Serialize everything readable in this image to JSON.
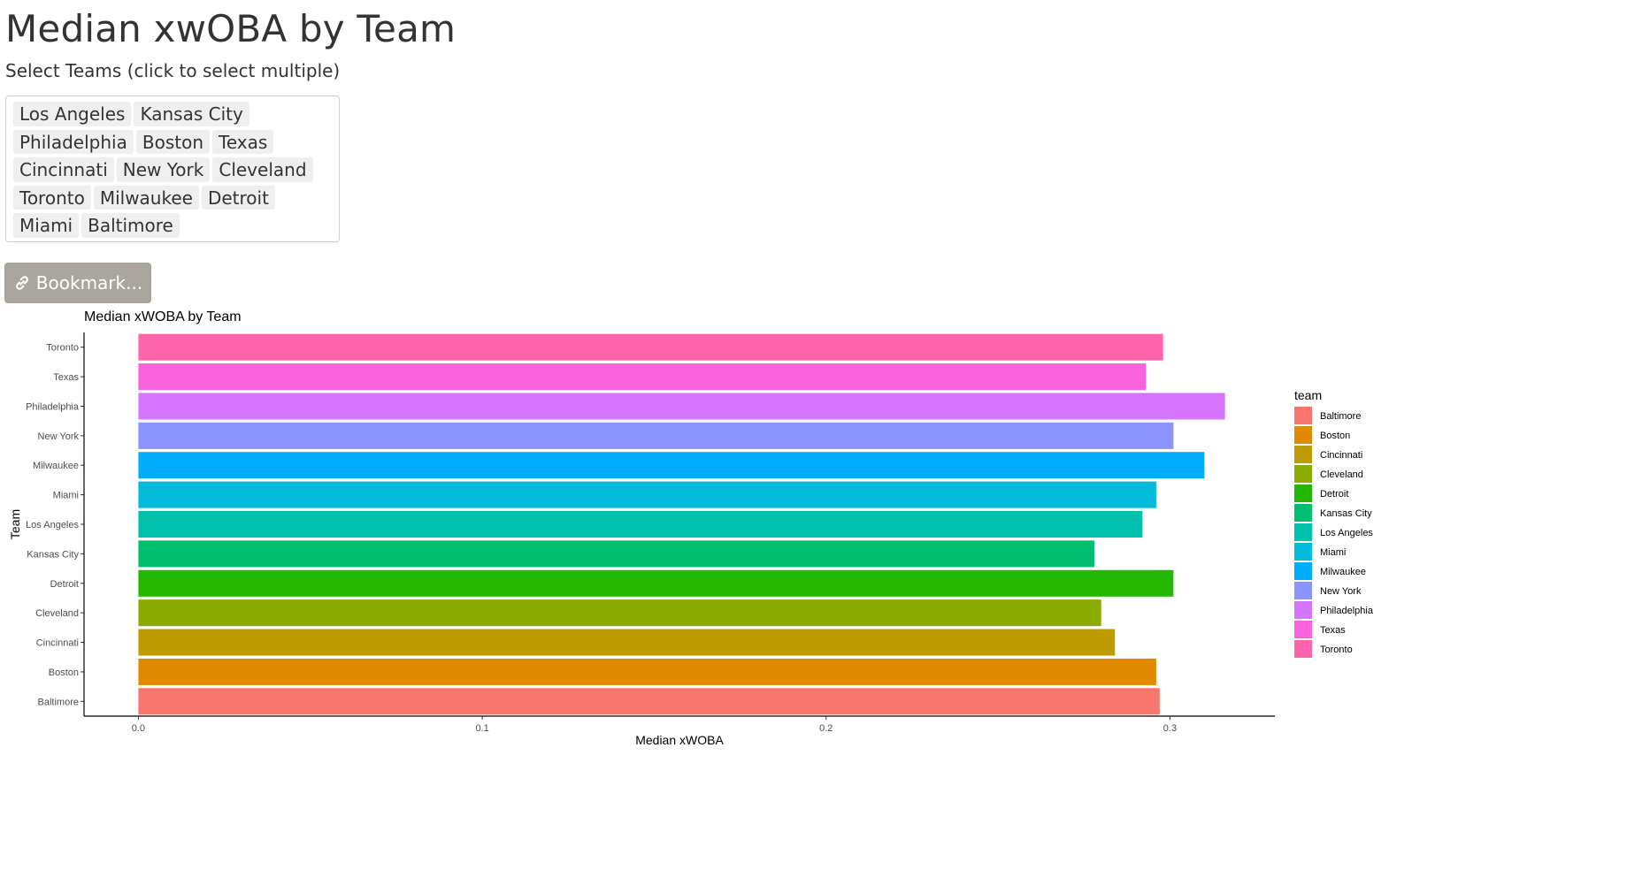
{
  "page": {
    "title": "Median xwOBA by Team",
    "select_label": "Select Teams (click to select multiple)",
    "selected_teams": [
      "Los Angeles",
      "Kansas City",
      "Philadelphia",
      "Boston",
      "Texas",
      "Cincinnati",
      "New York",
      "Cleveland",
      "Toronto",
      "Milwaukee",
      "Detroit",
      "Miami",
      "Baltimore"
    ],
    "bookmark_label": "Bookmark...",
    "bookmark_icon": "link-icon"
  },
  "chart_data": {
    "type": "bar",
    "orientation": "horizontal",
    "title": "Median xWOBA by Team",
    "xlabel": "Median xWOBA",
    "ylabel": "Team",
    "xlim": [
      -0.0158,
      0.3305
    ],
    "xticks": [
      0.0,
      0.1,
      0.2,
      0.3
    ],
    "xtick_labels": [
      "0.0",
      "0.1",
      "0.2",
      "0.3"
    ],
    "grid": false,
    "legend_title": "team",
    "legend_position": "right",
    "categories": [
      "Baltimore",
      "Boston",
      "Cincinnati",
      "Cleveland",
      "Detroit",
      "Kansas City",
      "Los Angeles",
      "Miami",
      "Milwaukee",
      "New York",
      "Philadelphia",
      "Texas",
      "Toronto"
    ],
    "values": [
      0.297,
      0.296,
      0.284,
      0.28,
      0.301,
      0.278,
      0.292,
      0.296,
      0.31,
      0.301,
      0.316,
      0.293,
      0.298
    ],
    "colors": [
      "#F8766D",
      "#E18A00",
      "#BE9C00",
      "#8CAB00",
      "#24B700",
      "#00BE70",
      "#00C1AB",
      "#00BBDA",
      "#00ACFC",
      "#8B93FF",
      "#D575FE",
      "#F962DD",
      "#FF65AC"
    ]
  }
}
